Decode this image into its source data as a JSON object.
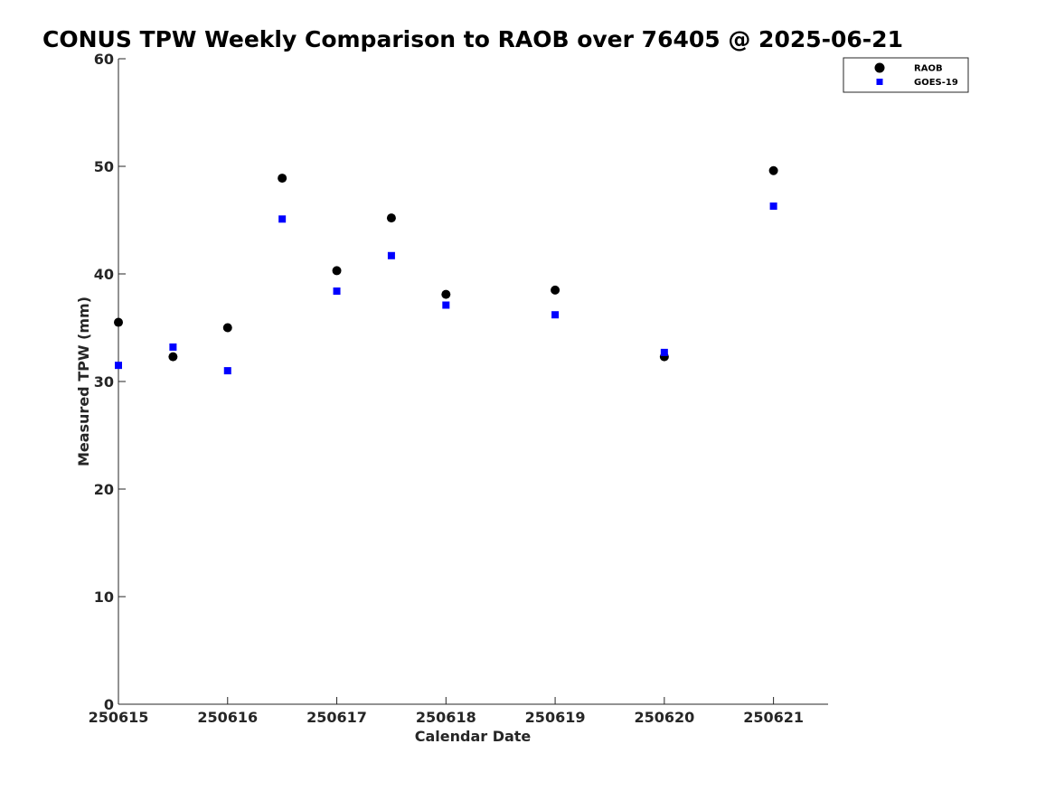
{
  "chart_data": {
    "type": "scatter",
    "title": "CONUS TPW Weekly Comparison to RAOB over 76405 @ 2025-06-21",
    "xlabel": "Calendar Date",
    "ylabel": "Measured TPW (mm)",
    "xlim": [
      250615,
      250621.5
    ],
    "ylim": [
      0,
      60
    ],
    "x_ticks": [
      250615,
      250616,
      250617,
      250618,
      250619,
      250620,
      250621
    ],
    "x_tick_labels": [
      "250615",
      "250616",
      "250617",
      "250618",
      "250619",
      "250620",
      "250621"
    ],
    "y_ticks": [
      0,
      10,
      20,
      30,
      40,
      50,
      60
    ],
    "y_tick_labels": [
      "0",
      "10",
      "20",
      "30",
      "40",
      "50",
      "60"
    ],
    "grid": false,
    "legend_position": "top-right",
    "series": [
      {
        "name": "RAOB",
        "marker": "circle",
        "color": "#000000",
        "x": [
          250615,
          250615.5,
          250616,
          250616.5,
          250617,
          250617.5,
          250618,
          250619,
          250620,
          250621
        ],
        "y": [
          35.5,
          32.3,
          35.0,
          48.9,
          40.3,
          45.2,
          38.1,
          38.5,
          32.3,
          49.6
        ]
      },
      {
        "name": "GOES-19",
        "marker": "square",
        "color": "#0000ff",
        "x": [
          250615,
          250615.5,
          250616,
          250616.5,
          250617,
          250617.5,
          250618,
          250619,
          250620,
          250621
        ],
        "y": [
          31.5,
          33.2,
          31.0,
          45.1,
          38.4,
          41.7,
          37.1,
          36.2,
          32.7,
          46.3
        ]
      }
    ]
  }
}
